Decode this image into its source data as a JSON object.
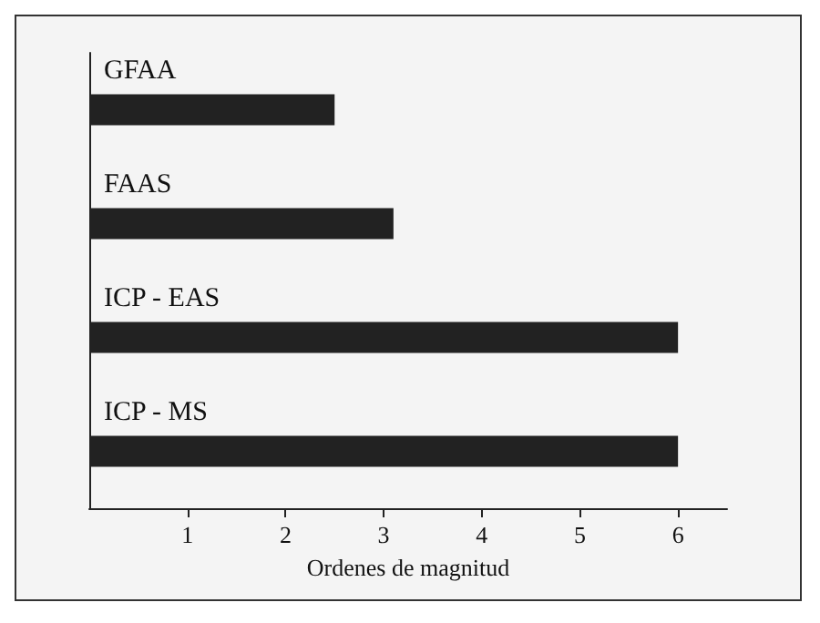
{
  "chart_data": {
    "type": "bar",
    "orientation": "horizontal",
    "xlabel": "Ordenes de magnitud",
    "categories": [
      "GFAA",
      "FAAS",
      "ICP - EAS",
      "ICP - MS"
    ],
    "values": [
      2.5,
      3.1,
      6,
      6
    ],
    "color": "#222222",
    "xlim": [
      0,
      6.5
    ],
    "xticks": [
      1,
      2,
      3,
      4,
      5,
      6
    ]
  }
}
